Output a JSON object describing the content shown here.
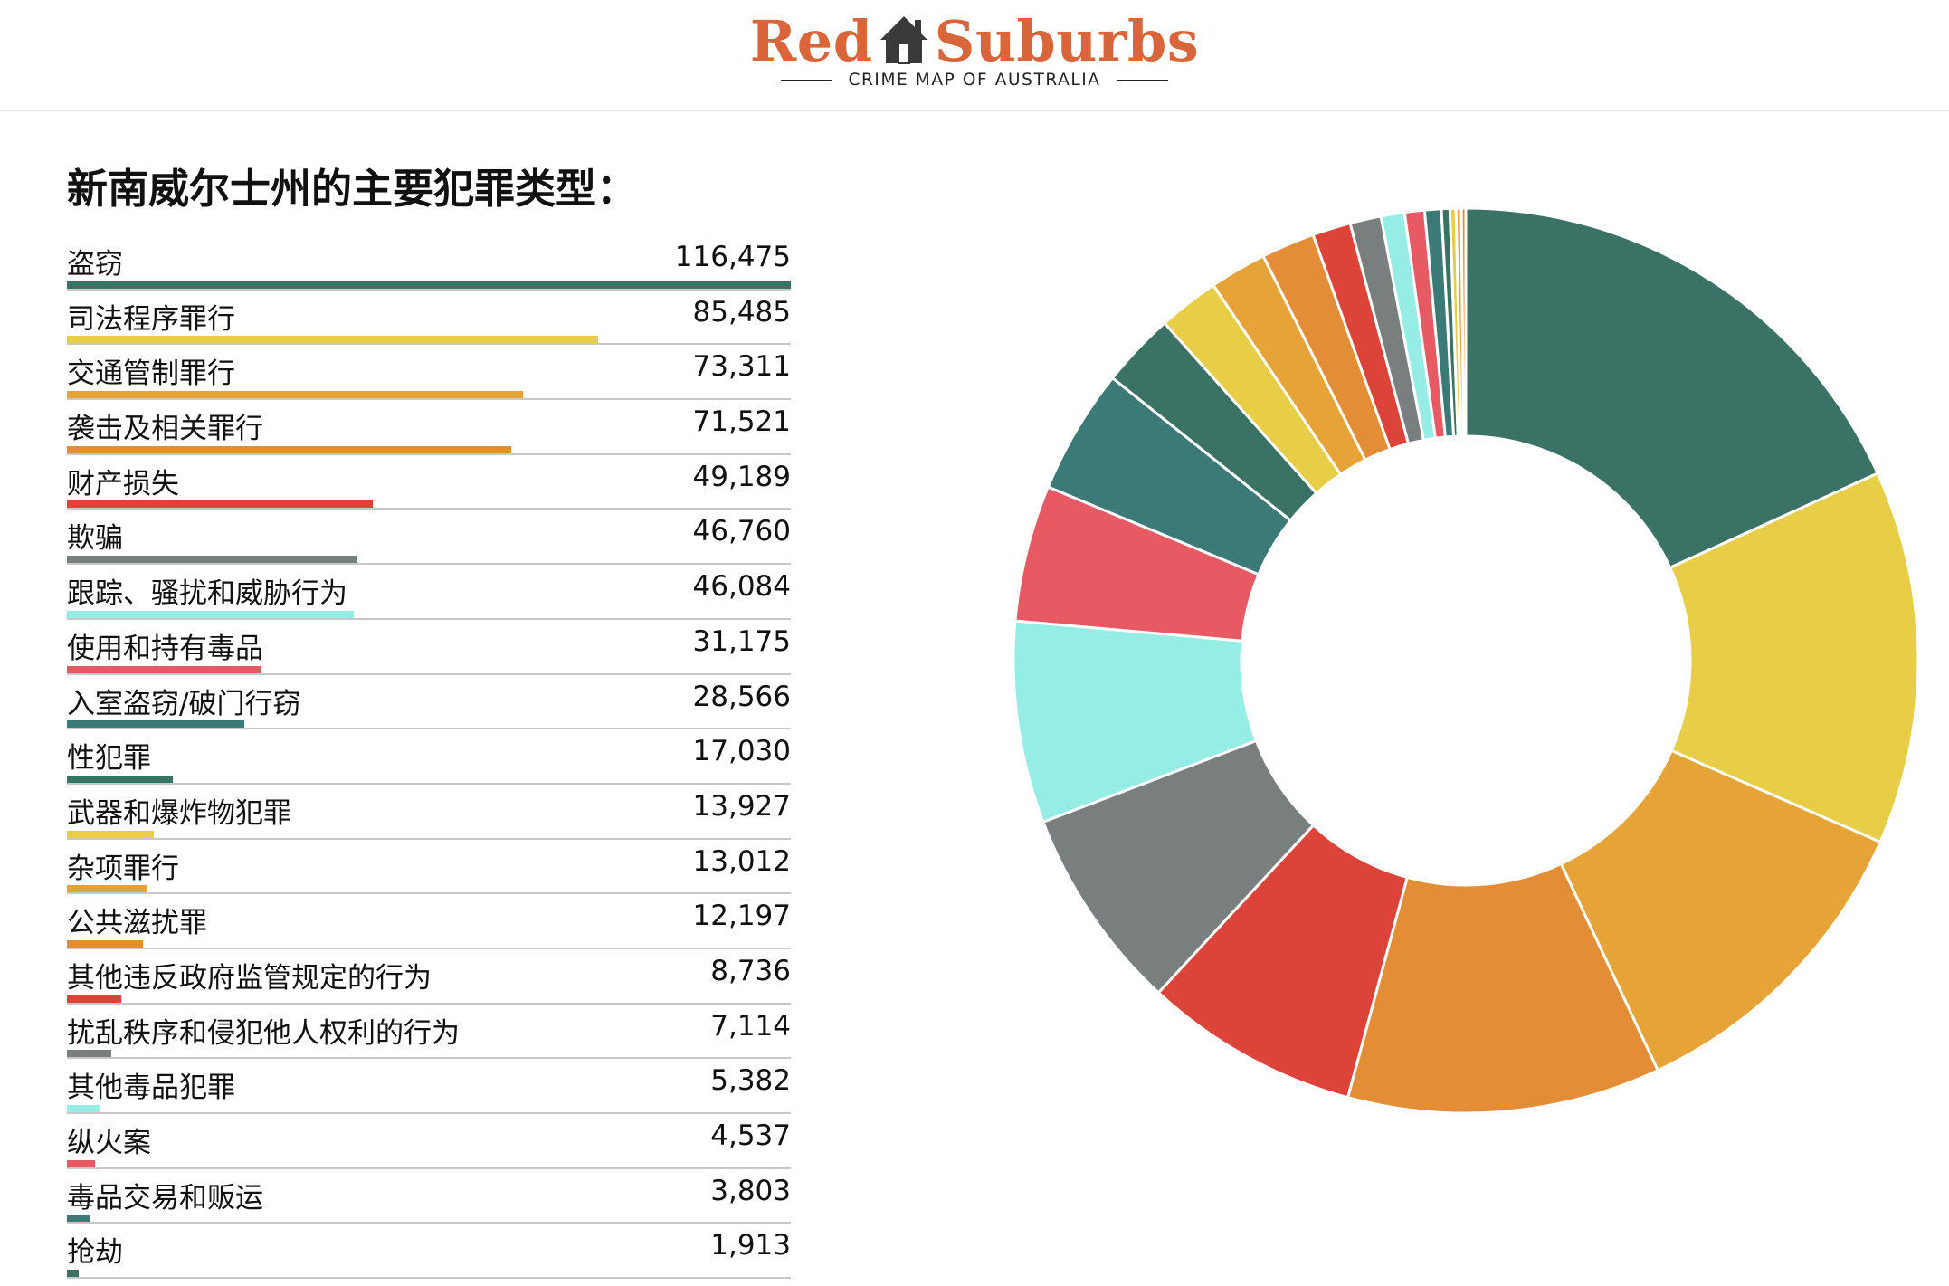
{
  "header": {
    "logo_left": "Red",
    "logo_right": "Suburbs",
    "tagline": "CRIME MAP OF AUSTRALIA",
    "brand_color": "#d9663a"
  },
  "heading": "新南威尔士州的主要犯罪类型：",
  "chart_data": {
    "type": "donut",
    "title": "新南威尔士州的主要犯罪类型：",
    "categories": [
      "盗窃",
      "司法程序罪行",
      "交通管制罪行",
      "袭击及相关罪行",
      "财产损失",
      "欺骗",
      "跟踪、骚扰和威胁行为",
      "使用和持有毒品",
      "入室盗窃/破门行窃",
      "性犯罪",
      "武器和爆炸物犯罪",
      "杂项罪行",
      "公共滋扰罪",
      "其他违反政府监管规定的行为",
      "扰乱秩序和侵犯他人权利的行为",
      "其他毒品犯罪",
      "纵火案",
      "毒品交易和贩运",
      "抢劫"
    ],
    "values": [
      116475,
      85485,
      73311,
      71521,
      49189,
      46760,
      46084,
      31175,
      28566,
      17030,
      13927,
      13012,
      12197,
      8736,
      7114,
      5382,
      4537,
      3803,
      1913
    ],
    "display_values": [
      "116,475",
      "85,485",
      "73,311",
      "71,521",
      "49,189",
      "46,760",
      "46,084",
      "31,175",
      "28,566",
      "17,030",
      "13,927",
      "13,012",
      "12,197",
      "8,736",
      "7,114",
      "5,382",
      "4,537",
      "3,803",
      "1,913"
    ],
    "colors": [
      "#3a7265",
      "#e8cd47",
      "#e6a438",
      "#e38d36",
      "#dc443a",
      "#787f7e",
      "#95ede6",
      "#e85a63",
      "#3c7a77",
      "#3a7265",
      "#e8cd47",
      "#e6a438",
      "#e38d36",
      "#dc443a",
      "#787f7e",
      "#95ede6",
      "#e85a63",
      "#3c7a77",
      "#3a7265"
    ],
    "extra_slices": {
      "values": [
        1400,
        1200,
        1000
      ],
      "colors": [
        "#e8cd47",
        "#e6a438",
        "#e38d36"
      ]
    }
  }
}
